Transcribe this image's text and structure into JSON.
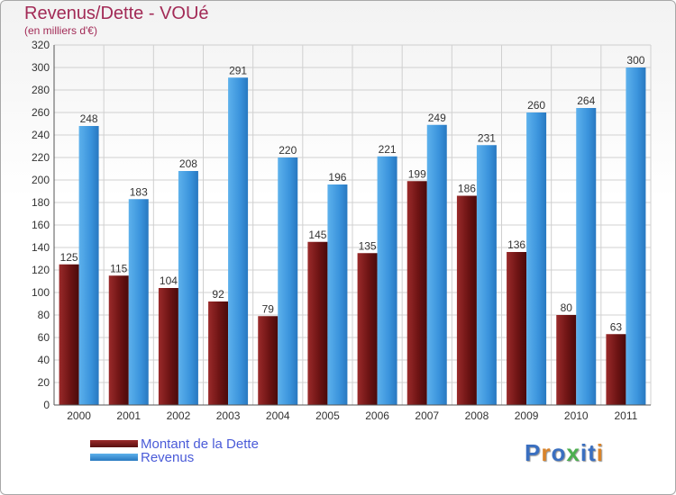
{
  "title": "Revenus/Dette - VOUé",
  "subtitle": "(en milliers d'€)",
  "legend": [
    {
      "label": "Montant de la Dette",
      "color": "#7a1a1a"
    },
    {
      "label": "Revenus",
      "color": "#3d95dc"
    }
  ],
  "logo": {
    "text": "Proxiti",
    "letter_colors": [
      "#3a6fc0",
      "#d9832a",
      "#3a6fc0",
      "#4caf50",
      "#3a6fc0",
      "#3a6fc0",
      "#d9832a"
    ]
  },
  "colors": {
    "debt": "#7a1a1a",
    "revenue": "#3d95dc",
    "axis_text": "#333333",
    "grid": "#d0d0d0"
  },
  "chart_data": {
    "type": "bar",
    "title": "Revenus/Dette - VOUé",
    "subtitle": "(en milliers d'€)",
    "categories": [
      "2000",
      "2001",
      "2002",
      "2003",
      "2004",
      "2005",
      "2006",
      "2007",
      "2008",
      "2009",
      "2010",
      "2011"
    ],
    "series": [
      {
        "name": "Montant de la Dette",
        "values": [
          125,
          115,
          104,
          92,
          79,
          145,
          135,
          199,
          186,
          136,
          80,
          63
        ]
      },
      {
        "name": "Revenus",
        "values": [
          248,
          183,
          208,
          291,
          220,
          196,
          221,
          249,
          231,
          260,
          264,
          300
        ]
      }
    ],
    "ylim": [
      0,
      320
    ],
    "yticks": [
      0,
      20,
      40,
      60,
      80,
      100,
      120,
      140,
      160,
      180,
      200,
      220,
      240,
      260,
      280,
      300,
      320
    ],
    "grid": true,
    "legend_position": "bottom-left"
  }
}
